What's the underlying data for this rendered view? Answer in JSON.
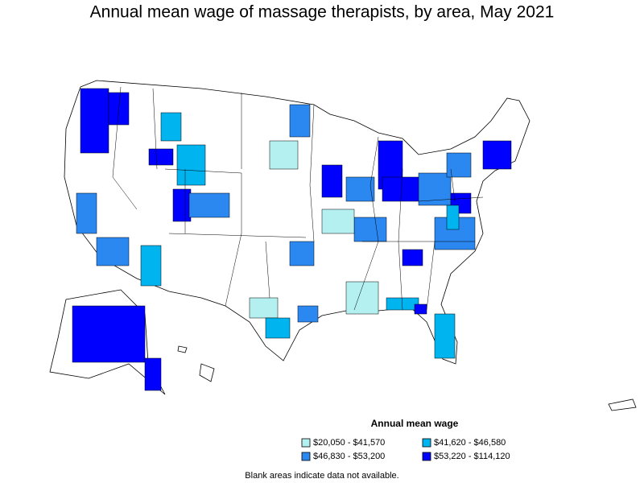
{
  "title": "Annual mean wage of massage therapists, by area, May 2021",
  "legend": {
    "title": "Annual mean wage",
    "items": [
      {
        "label": "$20,050 - $41,570",
        "color": "#b4f0f0"
      },
      {
        "label": "$41,620 - $46,580",
        "color": "#00b4f0"
      },
      {
        "label": "$46,830 - $53,200",
        "color": "#2a88f0"
      },
      {
        "label": "$53,220 - $114,120",
        "color": "#0000ff"
      }
    ]
  },
  "note": "Blank areas indicate data not available."
}
